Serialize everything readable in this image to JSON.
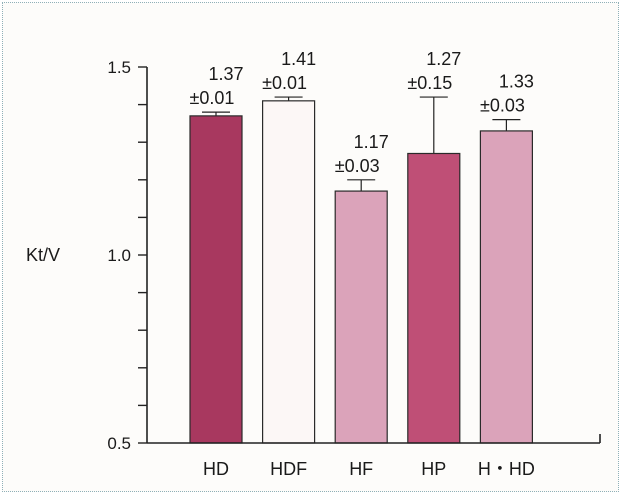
{
  "chart_data": {
    "type": "bar",
    "title": "",
    "xlabel": "",
    "ylabel": "Kt/V",
    "ylim": [
      0.5,
      1.5
    ],
    "yticks": [
      {
        "value": 0.5,
        "label": "0.5"
      },
      {
        "value": 1.0,
        "label": "1.0"
      },
      {
        "value": 1.5,
        "label": "1.5"
      }
    ],
    "minor_tick_step": 0.1,
    "grid": false,
    "categories": [
      "HD",
      "HDF",
      "HF",
      "HP",
      "H・HD"
    ],
    "values": [
      1.37,
      1.41,
      1.17,
      1.27,
      1.33
    ],
    "errors": [
      0.01,
      0.01,
      0.03,
      0.15,
      0.03
    ],
    "value_labels": [
      "1.37",
      "1.41",
      "1.17",
      "1.27",
      "1.33"
    ],
    "error_labels": [
      "±0.01",
      "±0.01",
      "±0.03",
      "±0.15",
      "±0.03"
    ],
    "colors": [
      "#a8385f",
      "#fcf7f6",
      "#dba3ba",
      "#bf4f76",
      "#dba3ba"
    ]
  }
}
